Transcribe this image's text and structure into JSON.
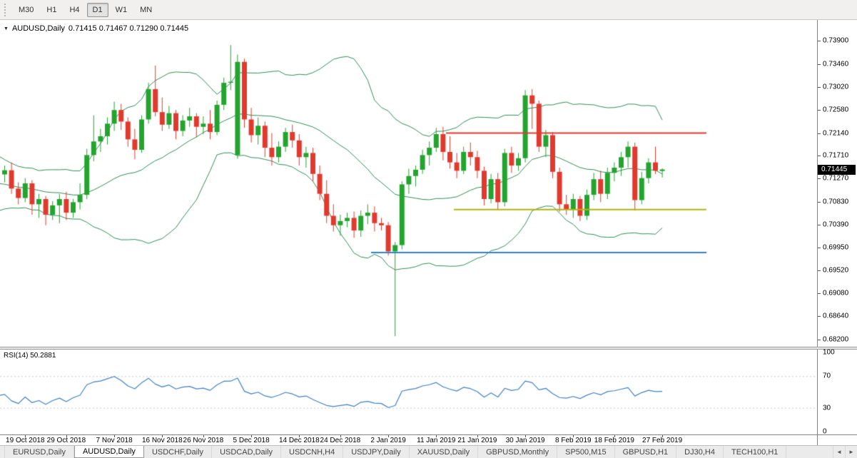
{
  "toolbar": {
    "timeframes": [
      {
        "label": "M30",
        "active": false
      },
      {
        "label": "H1",
        "active": false
      },
      {
        "label": "H4",
        "active": false
      },
      {
        "label": "D1",
        "active": true
      },
      {
        "label": "W1",
        "active": false
      },
      {
        "label": "MN",
        "active": false
      }
    ]
  },
  "icons": {
    "one_click_arrow": "▼",
    "tab_scroll_left": "◄",
    "tab_scroll_right": "►"
  },
  "chart": {
    "title_symbol": "AUDUSD,Daily",
    "title_ohlc": "0.71415 0.71467 0.71290 0.71445",
    "current_price": "0.71445",
    "price_axis": {
      "labels": [
        "0.73900",
        "0.73460",
        "0.73020",
        "0.72580",
        "0.72140",
        "0.71710",
        "0.71270",
        "0.70830",
        "0.70390",
        "0.69950",
        "0.69520",
        "0.69080",
        "0.68640",
        "0.68200"
      ]
    },
    "date_axis": {
      "labels": [
        {
          "text": "19 Oct 2018",
          "index": 3
        },
        {
          "text": "29 Oct 2018",
          "index": 9
        },
        {
          "text": "7 Nov 2018",
          "index": 16
        },
        {
          "text": "16 Nov 2018",
          "index": 23
        },
        {
          "text": "26 Nov 2018",
          "index": 29
        },
        {
          "text": "5 Dec 2018",
          "index": 36
        },
        {
          "text": "14 Dec 2018",
          "index": 43
        },
        {
          "text": "24 Dec 2018",
          "index": 49
        },
        {
          "text": "2 Jan 2019",
          "index": 56
        },
        {
          "text": "11 Jan 2019",
          "index": 63
        },
        {
          "text": "21 Jan 2019",
          "index": 69
        },
        {
          "text": "30 Jan 2019",
          "index": 76
        },
        {
          "text": "8 Feb 2019",
          "index": 83
        },
        {
          "text": "18 Feb 2019",
          "index": 89
        },
        {
          "text": "27 Feb 2019",
          "index": 96
        }
      ]
    },
    "colors": {
      "bull": "#24a42f",
      "bear": "#e03a2f",
      "bollinger": "#2e8b57",
      "rsi_line": "#4080c0",
      "badge_bg": "#000000",
      "badge_text": "#ffffff",
      "level_dash": "#c8c8c8"
    }
  },
  "chart_data": {
    "type": "candlestick",
    "symbol": "AUDUSD",
    "timeframe": "Daily",
    "ylim": [
      0.6806,
      0.743
    ],
    "ohlc": [
      [
        0.7135,
        0.7152,
        0.712,
        0.7143
      ],
      [
        0.7143,
        0.7158,
        0.7098,
        0.7108
      ],
      [
        0.7108,
        0.712,
        0.7078,
        0.709
      ],
      [
        0.709,
        0.7128,
        0.7082,
        0.7118
      ],
      [
        0.7118,
        0.7124,
        0.7058,
        0.7078
      ],
      [
        0.7078,
        0.7098,
        0.7052,
        0.7088
      ],
      [
        0.7088,
        0.7094,
        0.7038,
        0.7058
      ],
      [
        0.7058,
        0.7084,
        0.7048,
        0.7076
      ],
      [
        0.7076,
        0.7098,
        0.7042,
        0.7088
      ],
      [
        0.7088,
        0.7102,
        0.7048,
        0.7062
      ],
      [
        0.7062,
        0.7088,
        0.7052,
        0.7082
      ],
      [
        0.7082,
        0.7118,
        0.7068,
        0.7096
      ],
      [
        0.7096,
        0.7184,
        0.7088,
        0.7172
      ],
      [
        0.7172,
        0.7248,
        0.716,
        0.7198
      ],
      [
        0.7198,
        0.7222,
        0.7178,
        0.7208
      ],
      [
        0.7208,
        0.7244,
        0.7192,
        0.7232
      ],
      [
        0.7232,
        0.7274,
        0.7218,
        0.7258
      ],
      [
        0.7258,
        0.727,
        0.722,
        0.7236
      ],
      [
        0.7236,
        0.7244,
        0.7188,
        0.7202
      ],
      [
        0.7202,
        0.7222,
        0.7164,
        0.7182
      ],
      [
        0.7182,
        0.7248,
        0.7176,
        0.724
      ],
      [
        0.724,
        0.731,
        0.7232,
        0.7298
      ],
      [
        0.7298,
        0.7343,
        0.7246,
        0.7254
      ],
      [
        0.7254,
        0.7282,
        0.7218,
        0.723
      ],
      [
        0.723,
        0.7266,
        0.7222,
        0.7252
      ],
      [
        0.7252,
        0.7258,
        0.7202,
        0.7218
      ],
      [
        0.7218,
        0.7248,
        0.7208,
        0.7238
      ],
      [
        0.7238,
        0.7262,
        0.7226,
        0.7246
      ],
      [
        0.7246,
        0.7252,
        0.7206,
        0.7226
      ],
      [
        0.7226,
        0.7246,
        0.7212,
        0.7232
      ],
      [
        0.7232,
        0.7258,
        0.7202,
        0.7216
      ],
      [
        0.7216,
        0.7276,
        0.721,
        0.7268
      ],
      [
        0.7268,
        0.732,
        0.7258,
        0.731
      ],
      [
        0.731,
        0.7382,
        0.7296,
        0.7312
      ],
      [
        0.7172,
        0.7364,
        0.7165,
        0.735
      ],
      [
        0.735,
        0.7356,
        0.7224,
        0.724
      ],
      [
        0.724,
        0.7262,
        0.7196,
        0.721
      ],
      [
        0.721,
        0.7244,
        0.7192,
        0.7228
      ],
      [
        0.7228,
        0.7236,
        0.7168,
        0.7186
      ],
      [
        0.7186,
        0.7214,
        0.7152,
        0.7168
      ],
      [
        0.7168,
        0.7198,
        0.7158,
        0.7188
      ],
      [
        0.7188,
        0.7224,
        0.7178,
        0.7216
      ],
      [
        0.7216,
        0.723,
        0.7186,
        0.72
      ],
      [
        0.72,
        0.7212,
        0.7152,
        0.7168
      ],
      [
        0.7168,
        0.7188,
        0.7148,
        0.7176
      ],
      [
        0.7176,
        0.7186,
        0.7122,
        0.7136
      ],
      [
        0.7136,
        0.7152,
        0.7086,
        0.7098
      ],
      [
        0.7098,
        0.7124,
        0.7042,
        0.7056
      ],
      [
        0.7056,
        0.7078,
        0.7026,
        0.7038
      ],
      [
        0.7038,
        0.7058,
        0.7018,
        0.7046
      ],
      [
        0.7046,
        0.7062,
        0.7034,
        0.7052
      ],
      [
        0.7052,
        0.7064,
        0.7014,
        0.7028
      ],
      [
        0.7028,
        0.7066,
        0.7016,
        0.7056
      ],
      [
        0.7056,
        0.7078,
        0.704,
        0.7062
      ],
      [
        0.7062,
        0.7074,
        0.7026,
        0.7042
      ],
      [
        0.7042,
        0.7052,
        0.7028,
        0.7038
      ],
      [
        0.7038,
        0.7044,
        0.698,
        0.6988
      ],
      [
        0.6988,
        0.7006,
        0.6826,
        0.7
      ],
      [
        0.7,
        0.7122,
        0.6992,
        0.7116
      ],
      [
        0.7116,
        0.7146,
        0.7098,
        0.7132
      ],
      [
        0.7132,
        0.7152,
        0.7112,
        0.7144
      ],
      [
        0.7144,
        0.7182,
        0.7136,
        0.7172
      ],
      [
        0.7172,
        0.7198,
        0.7152,
        0.7186
      ],
      [
        0.7186,
        0.7224,
        0.7178,
        0.7212
      ],
      [
        0.7212,
        0.7226,
        0.7162,
        0.7178
      ],
      [
        0.7178,
        0.7208,
        0.7146,
        0.7158
      ],
      [
        0.7158,
        0.7176,
        0.7128,
        0.7142
      ],
      [
        0.7142,
        0.7188,
        0.7136,
        0.7178
      ],
      [
        0.7178,
        0.7196,
        0.7152,
        0.7168
      ],
      [
        0.7168,
        0.718,
        0.7128,
        0.7142
      ],
      [
        0.7142,
        0.715,
        0.7076,
        0.7088
      ],
      [
        0.7088,
        0.7136,
        0.708,
        0.7126
      ],
      [
        0.7126,
        0.7138,
        0.7068,
        0.7082
      ],
      [
        0.7082,
        0.7184,
        0.7074,
        0.7176
      ],
      [
        0.7176,
        0.7188,
        0.7138,
        0.7152
      ],
      [
        0.7152,
        0.7176,
        0.7142,
        0.7166
      ],
      [
        0.7166,
        0.7296,
        0.7158,
        0.7286
      ],
      [
        0.7286,
        0.7298,
        0.7222,
        0.727
      ],
      [
        0.727,
        0.7276,
        0.7178,
        0.7188
      ],
      [
        0.7188,
        0.722,
        0.7168,
        0.721
      ],
      [
        0.721,
        0.7216,
        0.7128,
        0.714
      ],
      [
        0.714,
        0.7148,
        0.7064,
        0.7078
      ],
      [
        0.7078,
        0.7096,
        0.7058,
        0.7068
      ],
      [
        0.7068,
        0.7098,
        0.7052,
        0.7088
      ],
      [
        0.7088,
        0.7094,
        0.7046,
        0.7056
      ],
      [
        0.7056,
        0.7106,
        0.7048,
        0.7096
      ],
      [
        0.7096,
        0.7138,
        0.7086,
        0.7126
      ],
      [
        0.7126,
        0.7142,
        0.7082,
        0.7098
      ],
      [
        0.7098,
        0.7148,
        0.7088,
        0.7138
      ],
      [
        0.7138,
        0.7158,
        0.7122,
        0.7148
      ],
      [
        0.7148,
        0.7178,
        0.7132,
        0.7168
      ],
      [
        0.7168,
        0.7198,
        0.7148,
        0.7188
      ],
      [
        0.7188,
        0.7196,
        0.7066,
        0.7086
      ],
      [
        0.7086,
        0.714,
        0.7078,
        0.7128
      ],
      [
        0.7128,
        0.7166,
        0.7118,
        0.7158
      ],
      [
        0.7158,
        0.7188,
        0.7136,
        0.7142
      ],
      [
        0.71415,
        0.71467,
        0.7129,
        0.71445
      ]
    ],
    "pre_history_closes": [
      0.7178,
      0.716,
      0.7152,
      0.7138,
      0.7125,
      0.714,
      0.7118,
      0.71,
      0.7095,
      0.7108,
      0.712,
      0.7098,
      0.7085,
      0.7092,
      0.7075,
      0.7088,
      0.7102,
      0.7118,
      0.713,
      0.7138
    ],
    "indicators": {
      "bollinger": {
        "period": 20,
        "deviation": 2
      },
      "rsi": {
        "period": 14,
        "current": "50.2881",
        "levels": [
          70,
          30
        ]
      }
    },
    "hlines": [
      {
        "price": 0.7214,
        "color": "#e03a2f",
        "x1": 625,
        "x2": 990
      },
      {
        "price": 0.7068,
        "color": "#b3b30d",
        "x1": 636,
        "x2": 990
      },
      {
        "price": 0.6986,
        "color": "#2f80d0",
        "x1": 520,
        "x2": 990
      }
    ]
  },
  "rsi": {
    "label": "RSI(14)",
    "value": "50.2881",
    "axis_labels": [
      "100",
      "70",
      "30",
      "0"
    ]
  },
  "tabs": {
    "items": [
      {
        "label": "EURUSD,Daily",
        "active": false
      },
      {
        "label": "AUDUSD,Daily",
        "active": true
      },
      {
        "label": "USDCHF,Daily",
        "active": false
      },
      {
        "label": "USDCAD,Daily",
        "active": false
      },
      {
        "label": "USDCNH,H4",
        "active": false
      },
      {
        "label": "USDJPY,Daily",
        "active": false
      },
      {
        "label": "XAUUSD,Daily",
        "active": false
      },
      {
        "label": "GBPUSD,Monthly",
        "active": false
      },
      {
        "label": "SP500,M15",
        "active": false
      },
      {
        "label": "GBPUSD,H1",
        "active": false
      },
      {
        "label": "DJ30,H4",
        "active": false
      },
      {
        "label": "TECH100,H1",
        "active": false
      }
    ]
  }
}
